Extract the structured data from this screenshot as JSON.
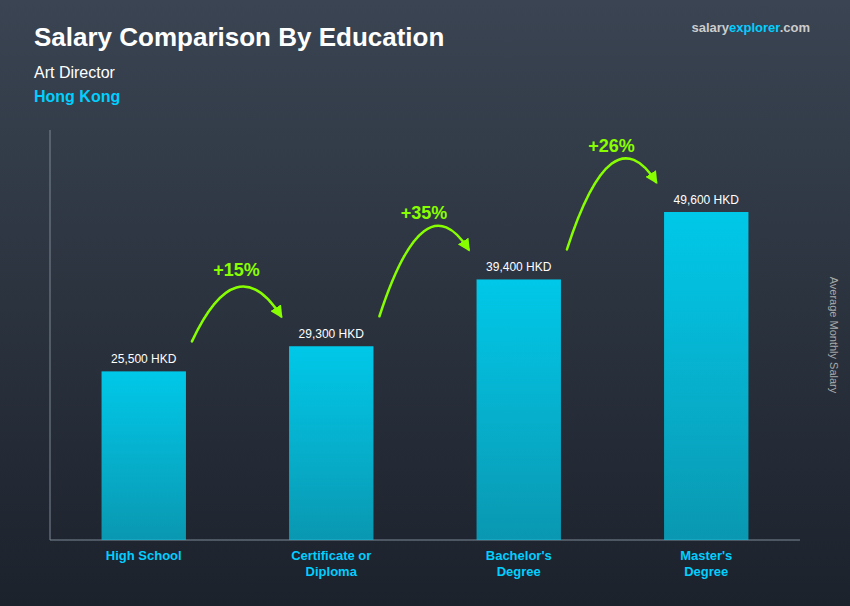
{
  "chart_data": {
    "type": "bar",
    "title": "Salary Comparison By Education",
    "subtitle": [
      "Art Director",
      "Hong Kong"
    ],
    "y_label": "Average Monthly Salary",
    "source": [
      "salary",
      "explorer",
      ".com"
    ],
    "categories": [
      "High School",
      "Certificate or\nDiploma",
      "Bachelor's\nDegree",
      "Master's\nDegree"
    ],
    "values": [
      25500,
      29300,
      39400,
      49600
    ],
    "value_labels": [
      "25,500 HKD",
      "29,300 HKD",
      "39,400 HKD",
      "49,600 HKD"
    ],
    "data_labels": true,
    "color": "#00c8e8",
    "ylim": [
      0,
      62000
    ],
    "tick_labels": "x",
    "grid": false,
    "annotations": [
      {
        "text": "+15%",
        "from": 0,
        "to": 1,
        "color": "#88ff00"
      },
      {
        "text": "+35%",
        "from": 1,
        "to": 2,
        "color": "#88ff00"
      },
      {
        "text": "+26%",
        "from": 2,
        "to": 3,
        "color": "#88ff00"
      }
    ]
  }
}
